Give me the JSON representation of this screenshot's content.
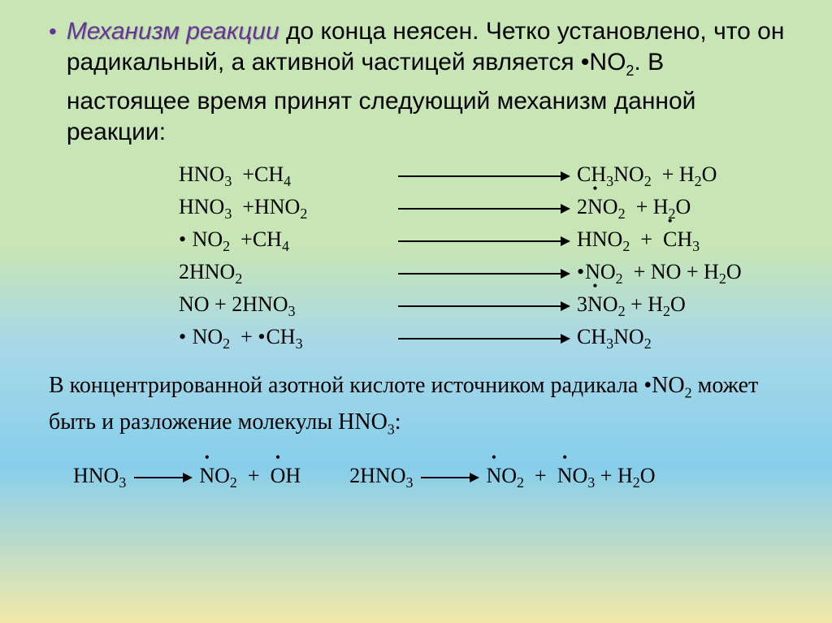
{
  "colors": {
    "emphasis": "#663399",
    "text": "#000000",
    "bg_top": "#c7e5b5",
    "bg_mid": "#87ceeb",
    "bg_bottom": "#f0e8a8"
  },
  "typography": {
    "main_fontsize": 30,
    "reaction_fontsize": 26,
    "sub_fontsize": 18,
    "reaction_font": "Times New Roman",
    "main_font": "Arial"
  },
  "para1": {
    "emphasis": "Механизм реакции",
    "rest": " до конца неясен. Четко установлено, что он радикальный, а активной частицей является •NO₂. В настоящее время принят следующий механизм данной реакции:"
  },
  "reactions": [
    {
      "lhs": "HNO₃  +CH₄",
      "rhs": "CH₃NO₂  + H₂O",
      "rhs_radical_over": ""
    },
    {
      "lhs": "HNO₃  +HNO₂",
      "rhs": "2NO₂  + H₂O",
      "rhs_radical_over": "NO₂"
    },
    {
      "lhs": "• NO₂  +CH₄",
      "rhs": "HNO₂  +  CH₃",
      "rhs_radical_over": "CH₃"
    },
    {
      "lhs": "2HNO₂",
      "rhs": "•NO₂  + NO + H₂O",
      "rhs_radical_over": ""
    },
    {
      "lhs": "NO + 2HNO₃",
      "rhs": "3NO₂ + H₂O",
      "rhs_radical_over": "NO₂"
    },
    {
      "lhs": "• NO₂  + •CH₃",
      "rhs": "CH₃NO₂",
      "rhs_radical_over": ""
    }
  ],
  "para2": "В концентрированной азотной кислоте источником радикала •NO₂ может быть и разложение молекулы HNO₃:",
  "bottom_reactions": {
    "r1": {
      "lhs": "HNO₃",
      "rhs_parts": [
        "NO₂",
        "  +  ",
        "OH"
      ]
    },
    "r2": {
      "lhs": "2HNO₃",
      "rhs_parts": [
        "NO₂",
        "  +  ",
        "NO₃",
        " + H₂O"
      ]
    }
  }
}
